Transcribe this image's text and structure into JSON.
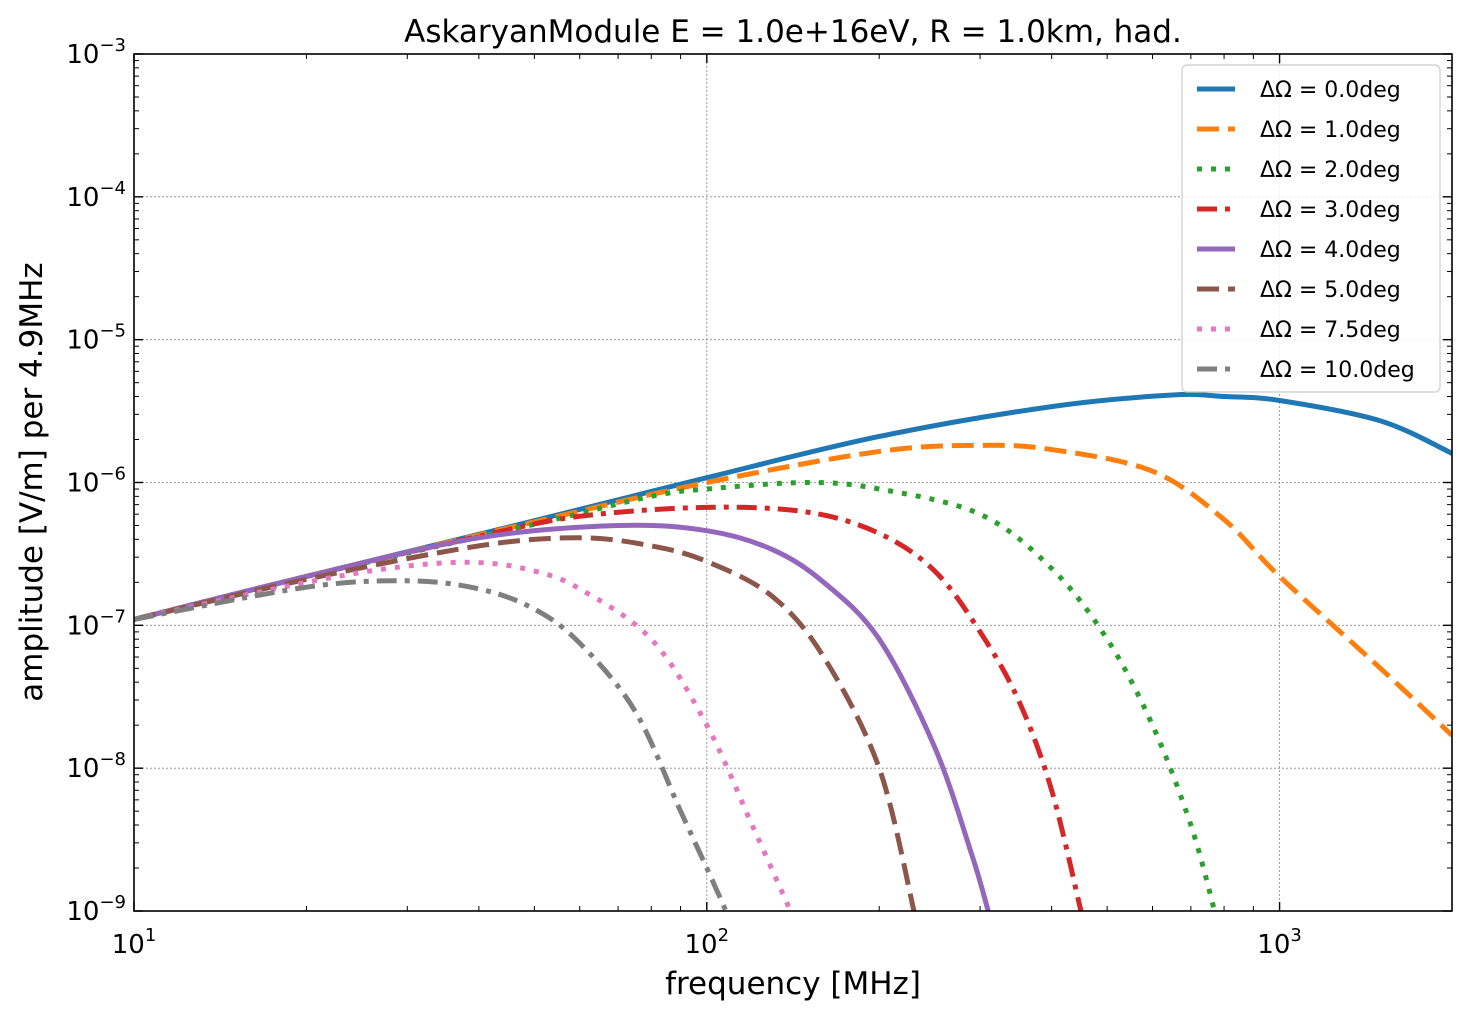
{
  "chart_data": {
    "type": "line",
    "title": "AskaryanModule E = 1.0e+16eV, R = 1.0km, had.",
    "xlabel": "frequency [MHz]",
    "ylabel": "amplitude [V/m] per 4.9MHz",
    "xscale": "log",
    "yscale": "log",
    "xlim": [
      10,
      2000
    ],
    "ylim": [
      1e-09,
      0.001
    ],
    "x_ticks": [
      {
        "value": 10,
        "base": "10",
        "exp": "1"
      },
      {
        "value": 100,
        "base": "10",
        "exp": "2"
      },
      {
        "value": 1000,
        "base": "10",
        "exp": "3"
      }
    ],
    "y_ticks": [
      {
        "value": 1e-09,
        "base": "10",
        "exp": "−9"
      },
      {
        "value": 1e-08,
        "base": "10",
        "exp": "−8"
      },
      {
        "value": 1e-07,
        "base": "10",
        "exp": "−7"
      },
      {
        "value": 1e-06,
        "base": "10",
        "exp": "−6"
      },
      {
        "value": 1e-05,
        "base": "10",
        "exp": "−5"
      },
      {
        "value": 0.0001,
        "base": "10",
        "exp": "−4"
      },
      {
        "value": 0.001,
        "base": "10",
        "exp": "−3"
      }
    ],
    "grid": true,
    "legend_position": "top-right",
    "series": [
      {
        "name": "ΔΩ = 0.0deg",
        "color": "#1f77b4",
        "dash": "solid",
        "points": [
          [
            10,
            1.1e-07
          ],
          [
            20,
            2.2e-07
          ],
          [
            50,
            5.4e-07
          ],
          [
            100,
            1.08e-06
          ],
          [
            200,
            2.1e-06
          ],
          [
            400,
            3.4e-06
          ],
          [
            650,
            4.1e-06
          ],
          [
            800,
            4e-06
          ],
          [
            1000,
            3.75e-06
          ],
          [
            1500,
            2.7e-06
          ],
          [
            2000,
            1.6e-06
          ]
        ]
      },
      {
        "name": "ΔΩ = 1.0deg",
        "color": "#ff7f0e",
        "dash": "dashed",
        "points": [
          [
            10,
            1.1e-07
          ],
          [
            20,
            2.2e-07
          ],
          [
            50,
            5.3e-07
          ],
          [
            100,
            1e-06
          ],
          [
            200,
            1.65e-06
          ],
          [
            300,
            1.82e-06
          ],
          [
            400,
            1.7e-06
          ],
          [
            600,
            1.2e-06
          ],
          [
            800,
            5.5e-07
          ],
          [
            1000,
            2.2e-07
          ],
          [
            1500,
            5e-08
          ],
          [
            2000,
            1.7e-08
          ]
        ]
      },
      {
        "name": "ΔΩ = 2.0deg",
        "color": "#2ca02c",
        "dash": "dotted",
        "points": [
          [
            10,
            1.1e-07
          ],
          [
            20,
            2.2e-07
          ],
          [
            50,
            5.1e-07
          ],
          [
            80,
            8e-07
          ],
          [
            100,
            9e-07
          ],
          [
            150,
            1e-06
          ],
          [
            200,
            9e-07
          ],
          [
            300,
            6e-07
          ],
          [
            400,
            2.5e-07
          ],
          [
            500,
            8e-08
          ],
          [
            600,
            2e-08
          ],
          [
            700,
            4e-09
          ],
          [
            770,
            1e-09
          ]
        ]
      },
      {
        "name": "ΔΩ = 3.0deg",
        "color": "#d62728",
        "dash": "dashdot",
        "points": [
          [
            10,
            1.1e-07
          ],
          [
            20,
            2.2e-07
          ],
          [
            40,
            4.2e-07
          ],
          [
            60,
            5.8e-07
          ],
          [
            100,
            6.7e-07
          ],
          [
            150,
            6.2e-07
          ],
          [
            200,
            4.4e-07
          ],
          [
            250,
            2.4e-07
          ],
          [
            300,
            9e-08
          ],
          [
            350,
            3e-08
          ],
          [
            400,
            7e-09
          ],
          [
            450,
            1e-09
          ]
        ]
      },
      {
        "name": "ΔΩ = 4.0deg",
        "color": "#9467bd",
        "dash": "solid",
        "points": [
          [
            10,
            1.1e-07
          ],
          [
            20,
            2.2e-07
          ],
          [
            40,
            4.1e-07
          ],
          [
            70,
            5e-07
          ],
          [
            100,
            4.6e-07
          ],
          [
            130,
            3.4e-07
          ],
          [
            160,
            2e-07
          ],
          [
            200,
            8e-08
          ],
          [
            250,
            1.4e-08
          ],
          [
            290,
            2.5e-09
          ],
          [
            310,
            1e-09
          ]
        ]
      },
      {
        "name": "ΔΩ = 5.0deg",
        "color": "#8c564b",
        "dash": "dashed",
        "points": [
          [
            10,
            1.1e-07
          ],
          [
            20,
            2.1e-07
          ],
          [
            40,
            3.6e-07
          ],
          [
            60,
            4.1e-07
          ],
          [
            80,
            3.6e-07
          ],
          [
            100,
            2.8e-07
          ],
          [
            130,
            1.6e-07
          ],
          [
            160,
            6e-08
          ],
          [
            200,
            1e-08
          ],
          [
            230,
            1e-09
          ]
        ]
      },
      {
        "name": "ΔΩ = 7.5deg",
        "color": "#e377c2",
        "dash": "dotted",
        "points": [
          [
            10,
            1.1e-07
          ],
          [
            20,
            2e-07
          ],
          [
            30,
            2.6e-07
          ],
          [
            40,
            2.75e-07
          ],
          [
            50,
            2.4e-07
          ],
          [
            60,
            1.8e-07
          ],
          [
            80,
            8e-08
          ],
          [
            100,
            2e-08
          ],
          [
            120,
            4e-09
          ],
          [
            140,
            1e-09
          ]
        ]
      },
      {
        "name": "ΔΩ = 10.0deg",
        "color": "#7f7f7f",
        "dash": "dashdot",
        "points": [
          [
            10,
            1.1e-07
          ],
          [
            20,
            1.85e-07
          ],
          [
            30,
            2.05e-07
          ],
          [
            40,
            1.8e-07
          ],
          [
            50,
            1.3e-07
          ],
          [
            60,
            7.5e-08
          ],
          [
            75,
            2.5e-08
          ],
          [
            90,
            5e-09
          ],
          [
            100,
            2e-09
          ],
          [
            108,
            1e-09
          ]
        ]
      }
    ]
  }
}
